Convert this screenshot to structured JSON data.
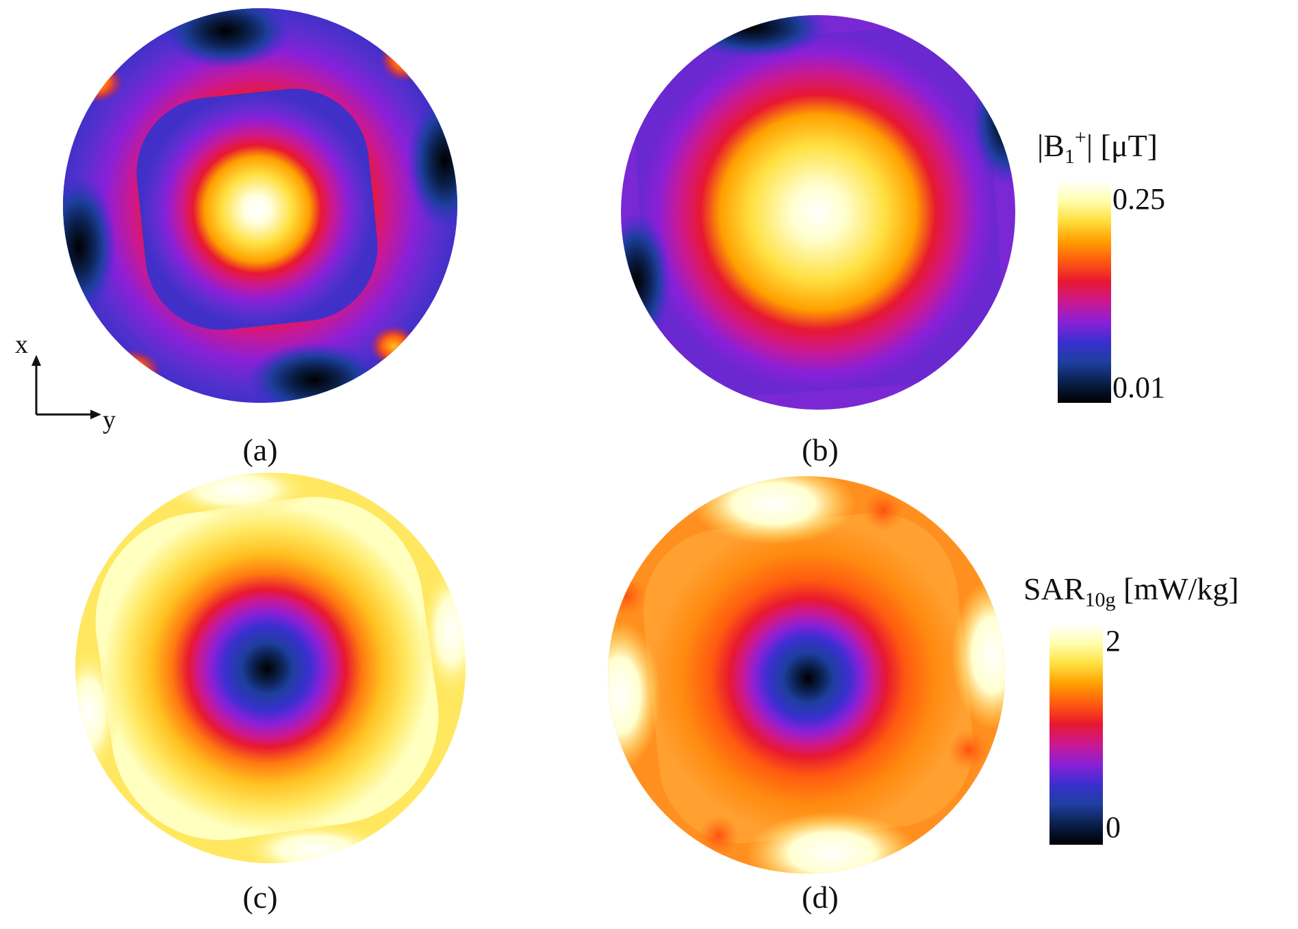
{
  "chart_data": [
    {
      "type": "heatmap",
      "panel_label": "(a)",
      "quantity": "|B1+|",
      "unit": "μT",
      "value_range": [
        0.01,
        0.25
      ],
      "colorbar_ticks": [
        "0.25",
        "0.01"
      ]
    },
    {
      "type": "heatmap",
      "panel_label": "(b)",
      "quantity": "|B1+|",
      "unit": "μT",
      "value_range": [
        0.01,
        0.25
      ],
      "colorbar_ticks": [
        "0.25",
        "0.01"
      ]
    },
    {
      "type": "heatmap",
      "panel_label": "(c)",
      "quantity": "SAR10g",
      "unit": "mW/kg",
      "value_range": [
        0,
        2
      ],
      "colorbar_ticks": [
        "2",
        "0"
      ]
    },
    {
      "type": "heatmap",
      "panel_label": "(d)",
      "quantity": "SAR10g",
      "unit": "mW/kg",
      "value_range": [
        0,
        2
      ],
      "colorbar_ticks": [
        "2",
        "0"
      ]
    }
  ],
  "colorbars": {
    "b1": {
      "title_main": "|B",
      "title_sub": "1",
      "title_sup": "+",
      "title_end": "| [μT]",
      "max_label": "0.25",
      "min_label": "0.01"
    },
    "sar": {
      "title_main": "SAR",
      "title_sub": "10g",
      "title_end": " [mW/kg]",
      "max_label": "2",
      "min_label": "0"
    }
  },
  "axes_indicator": {
    "x_label": "x",
    "y_label": "y"
  },
  "colormap": [
    "#000000",
    "#0a1f4a",
    "#1e3f9e",
    "#3a2fd0",
    "#8a20d8",
    "#cc1890",
    "#e81830",
    "#ff5a10",
    "#ffa000",
    "#ffe040",
    "#ffffb0",
    "#ffffff"
  ]
}
